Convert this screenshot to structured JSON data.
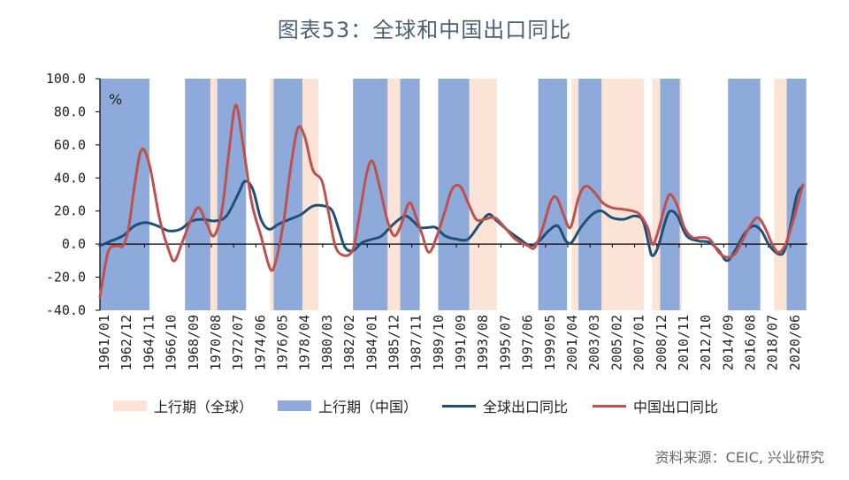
{
  "title": "图表53：全球和中国出口同比",
  "source": "资料来源：CEIC, 兴业研究",
  "colors": {
    "global": "#1f4e79",
    "china": "#c0504d",
    "band_china": "#8eaadb",
    "band_global": "#fbe4d5"
  },
  "chart_data": {
    "type": "line",
    "unit_label": "%",
    "ylim": [
      -40,
      100
    ],
    "yticks": [
      "100.0",
      "80.0",
      "60.0",
      "40.0",
      "20.0",
      "0.0",
      "-20.0",
      "-40.0"
    ],
    "xlim": [
      1961.0,
      2022.5
    ],
    "xticks": [
      "1961/01",
      "1962/12",
      "1964/11",
      "1966/10",
      "1968/09",
      "1970/08",
      "1972/07",
      "1974/06",
      "1976/05",
      "1978/04",
      "1980/03",
      "1982/02",
      "1984/01",
      "1985/12",
      "1987/11",
      "1989/10",
      "1991/09",
      "1993/08",
      "1995/07",
      "1997/06",
      "1999/05",
      "2001/04",
      "2003/03",
      "2005/02",
      "2007/01",
      "2008/12",
      "2010/11",
      "2012/10",
      "2014/09",
      "2016/08",
      "2018/07",
      "2020/06"
    ],
    "legend": [
      {
        "name": "上行期（全球）",
        "kind": "band",
        "color": "#fbe4d5"
      },
      {
        "name": "上行期（中国）",
        "kind": "band",
        "color": "#8eaadb"
      },
      {
        "name": "全球出口同比",
        "kind": "line",
        "color": "#1f4e79"
      },
      {
        "name": "中国出口同比",
        "kind": "line",
        "color": "#c0504d"
      }
    ],
    "bands_global": [
      [
        1961.0,
        1965.3
      ],
      [
        1968.4,
        1970.0
      ],
      [
        1970.6,
        1972.6
      ],
      [
        1975.8,
        1978.0
      ],
      [
        1978.4,
        1980.0
      ],
      [
        1983.5,
        1985.2
      ],
      [
        1985.2,
        1987.8
      ],
      [
        1991.0,
        1993.1
      ],
      [
        1993.1,
        1995.5
      ],
      [
        1999.1,
        2001.0
      ],
      [
        2002.0,
        2004.4
      ],
      [
        2004.4,
        2006.6
      ],
      [
        2006.6,
        2008.3
      ],
      [
        2009.0,
        2011.6
      ],
      [
        2016.0,
        2018.4
      ],
      [
        2019.6,
        2021.9
      ]
    ],
    "bands_china": [
      [
        1961.0,
        1965.3
      ],
      [
        1968.4,
        1970.6
      ],
      [
        1971.2,
        1973.7
      ],
      [
        1976.1,
        1978.6
      ],
      [
        1983.0,
        1986.0
      ],
      [
        1987.1,
        1988.8
      ],
      [
        1990.4,
        1993.1
      ],
      [
        1999.1,
        2001.6
      ],
      [
        2002.6,
        2004.6
      ],
      [
        2009.7,
        2011.4
      ],
      [
        2015.6,
        2018.4
      ],
      [
        2020.7,
        2022.4
      ]
    ],
    "series": [
      {
        "name": "全球出口同比",
        "points": [
          [
            1961.0,
            -1
          ],
          [
            1962.0,
            2
          ],
          [
            1963.0,
            5
          ],
          [
            1964.0,
            11
          ],
          [
            1965.0,
            13
          ],
          [
            1966.0,
            11
          ],
          [
            1967.0,
            8
          ],
          [
            1968.0,
            9
          ],
          [
            1969.0,
            14
          ],
          [
            1970.0,
            15
          ],
          [
            1971.0,
            14
          ],
          [
            1972.0,
            17
          ],
          [
            1973.0,
            30
          ],
          [
            1973.6,
            38
          ],
          [
            1974.3,
            33
          ],
          [
            1975.0,
            15
          ],
          [
            1975.7,
            9
          ],
          [
            1976.5,
            12
          ],
          [
            1977.5,
            15
          ],
          [
            1978.5,
            18
          ],
          [
            1979.5,
            23
          ],
          [
            1980.5,
            23
          ],
          [
            1981.2,
            20
          ],
          [
            1981.8,
            8
          ],
          [
            1982.3,
            -2
          ],
          [
            1983.0,
            -4
          ],
          [
            1983.8,
            1
          ],
          [
            1984.7,
            3
          ],
          [
            1985.5,
            5
          ],
          [
            1986.5,
            12
          ],
          [
            1987.5,
            17
          ],
          [
            1988.2,
            14
          ],
          [
            1988.8,
            10
          ],
          [
            1989.5,
            10
          ],
          [
            1990.2,
            10
          ],
          [
            1991.0,
            5
          ],
          [
            1992.0,
            3
          ],
          [
            1993.0,
            3
          ],
          [
            1994.0,
            12
          ],
          [
            1994.8,
            18
          ],
          [
            1995.5,
            14
          ],
          [
            1996.5,
            8
          ],
          [
            1997.5,
            3
          ],
          [
            1998.4,
            -1
          ],
          [
            1999.2,
            2
          ],
          [
            2000.0,
            8
          ],
          [
            2000.8,
            11
          ],
          [
            2001.5,
            2
          ],
          [
            2002.0,
            1
          ],
          [
            2002.8,
            10
          ],
          [
            2003.8,
            18
          ],
          [
            2004.6,
            20
          ],
          [
            2005.5,
            16
          ],
          [
            2006.5,
            15
          ],
          [
            2007.5,
            17
          ],
          [
            2008.2,
            14
          ],
          [
            2008.7,
            0
          ],
          [
            2009.0,
            -7
          ],
          [
            2009.5,
            -2
          ],
          [
            2010.2,
            15
          ],
          [
            2010.6,
            20
          ],
          [
            2011.2,
            17
          ],
          [
            2012.0,
            5
          ],
          [
            2013.0,
            2
          ],
          [
            2014.0,
            1
          ],
          [
            2014.8,
            -4
          ],
          [
            2015.5,
            -10
          ],
          [
            2016.2,
            -4
          ],
          [
            2017.0,
            6
          ],
          [
            2017.8,
            11
          ],
          [
            2018.5,
            8
          ],
          [
            2019.2,
            -1
          ],
          [
            2020.0,
            -6
          ],
          [
            2020.5,
            -4
          ],
          [
            2021.0,
            10
          ],
          [
            2021.6,
            30
          ],
          [
            2022.1,
            35
          ]
        ]
      },
      {
        "name": "中国出口同比",
        "points": [
          [
            1961.0,
            -32
          ],
          [
            1961.7,
            -5
          ],
          [
            1962.4,
            -1
          ],
          [
            1963.0,
            -1
          ],
          [
            1963.5,
            10
          ],
          [
            1964.0,
            35
          ],
          [
            1964.6,
            57
          ],
          [
            1965.3,
            48
          ],
          [
            1966.2,
            15
          ],
          [
            1967.0,
            -4
          ],
          [
            1967.5,
            -10
          ],
          [
            1968.2,
            2
          ],
          [
            1969.0,
            16
          ],
          [
            1969.6,
            22
          ],
          [
            1970.3,
            12
          ],
          [
            1970.9,
            5
          ],
          [
            1971.6,
            20
          ],
          [
            1972.2,
            55
          ],
          [
            1972.8,
            84
          ],
          [
            1973.4,
            62
          ],
          [
            1974.2,
            25
          ],
          [
            1975.0,
            5
          ],
          [
            1975.8,
            -15
          ],
          [
            1976.3,
            -10
          ],
          [
            1977.0,
            15
          ],
          [
            1977.6,
            47
          ],
          [
            1978.2,
            70
          ],
          [
            1978.8,
            65
          ],
          [
            1979.5,
            45
          ],
          [
            1980.3,
            38
          ],
          [
            1980.9,
            18
          ],
          [
            1981.5,
            -2
          ],
          [
            1982.3,
            -7
          ],
          [
            1983.0,
            -3
          ],
          [
            1983.5,
            15
          ],
          [
            1984.2,
            43
          ],
          [
            1984.7,
            50
          ],
          [
            1985.3,
            35
          ],
          [
            1986.0,
            14
          ],
          [
            1986.6,
            5
          ],
          [
            1987.2,
            12
          ],
          [
            1987.9,
            25
          ],
          [
            1988.5,
            16
          ],
          [
            1989.0,
            6
          ],
          [
            1989.6,
            -5
          ],
          [
            1990.3,
            5
          ],
          [
            1991.0,
            20
          ],
          [
            1991.6,
            33
          ],
          [
            1992.3,
            35
          ],
          [
            1993.0,
            25
          ],
          [
            1993.7,
            15
          ],
          [
            1994.4,
            15
          ],
          [
            1995.3,
            16
          ],
          [
            1996.2,
            10
          ],
          [
            1997.1,
            3
          ],
          [
            1998.2,
            -1
          ],
          [
            1998.8,
            -2
          ],
          [
            1999.5,
            10
          ],
          [
            2000.2,
            26
          ],
          [
            2000.7,
            28
          ],
          [
            2001.3,
            18
          ],
          [
            2001.9,
            10
          ],
          [
            2002.6,
            28
          ],
          [
            2003.2,
            35
          ],
          [
            2003.9,
            32
          ],
          [
            2004.7,
            25
          ],
          [
            2005.5,
            22
          ],
          [
            2006.5,
            21
          ],
          [
            2007.3,
            20
          ],
          [
            2007.9,
            18
          ],
          [
            2008.6,
            10
          ],
          [
            2009.0,
            0
          ],
          [
            2009.4,
            5
          ],
          [
            2010.2,
            25
          ],
          [
            2010.6,
            30
          ],
          [
            2011.2,
            23
          ],
          [
            2011.8,
            10
          ],
          [
            2012.5,
            4
          ],
          [
            2013.2,
            4
          ],
          [
            2014.0,
            3
          ],
          [
            2014.8,
            -5
          ],
          [
            2015.5,
            -8
          ],
          [
            2016.2,
            -6
          ],
          [
            2016.9,
            3
          ],
          [
            2017.6,
            12
          ],
          [
            2018.2,
            16
          ],
          [
            2018.8,
            10
          ],
          [
            2019.5,
            -1
          ],
          [
            2020.0,
            -5
          ],
          [
            2020.6,
            0
          ],
          [
            2021.3,
            15
          ],
          [
            2022.1,
            36
          ]
        ]
      }
    ]
  }
}
